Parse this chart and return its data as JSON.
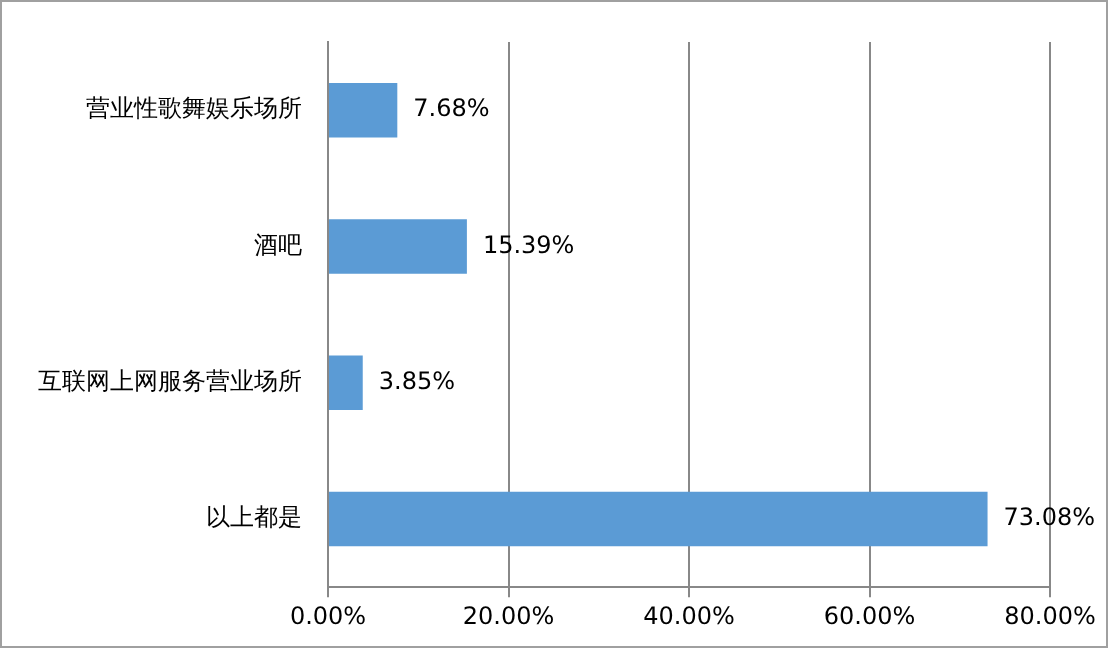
{
  "chart_data": {
    "type": "bar",
    "orientation": "horizontal",
    "categories": [
      "营业性歌舞娱乐场所",
      "酒吧",
      "互联网上网服务营业场所",
      "以上都是"
    ],
    "values": [
      7.68,
      15.39,
      3.85,
      73.08
    ],
    "value_labels": [
      "7.68%",
      "15.39%",
      "3.85%",
      "73.08%"
    ],
    "color": "#5b9bd5",
    "xlim": [
      0,
      80
    ],
    "xticks": [
      {
        "value": 0,
        "label": "0.00%"
      },
      {
        "value": 20,
        "label": "20.00%"
      },
      {
        "value": 40,
        "label": "40.00%"
      },
      {
        "value": 60,
        "label": "60.00%"
      },
      {
        "value": 80,
        "label": "80.00%"
      }
    ],
    "grid": "x",
    "legend": false
  }
}
